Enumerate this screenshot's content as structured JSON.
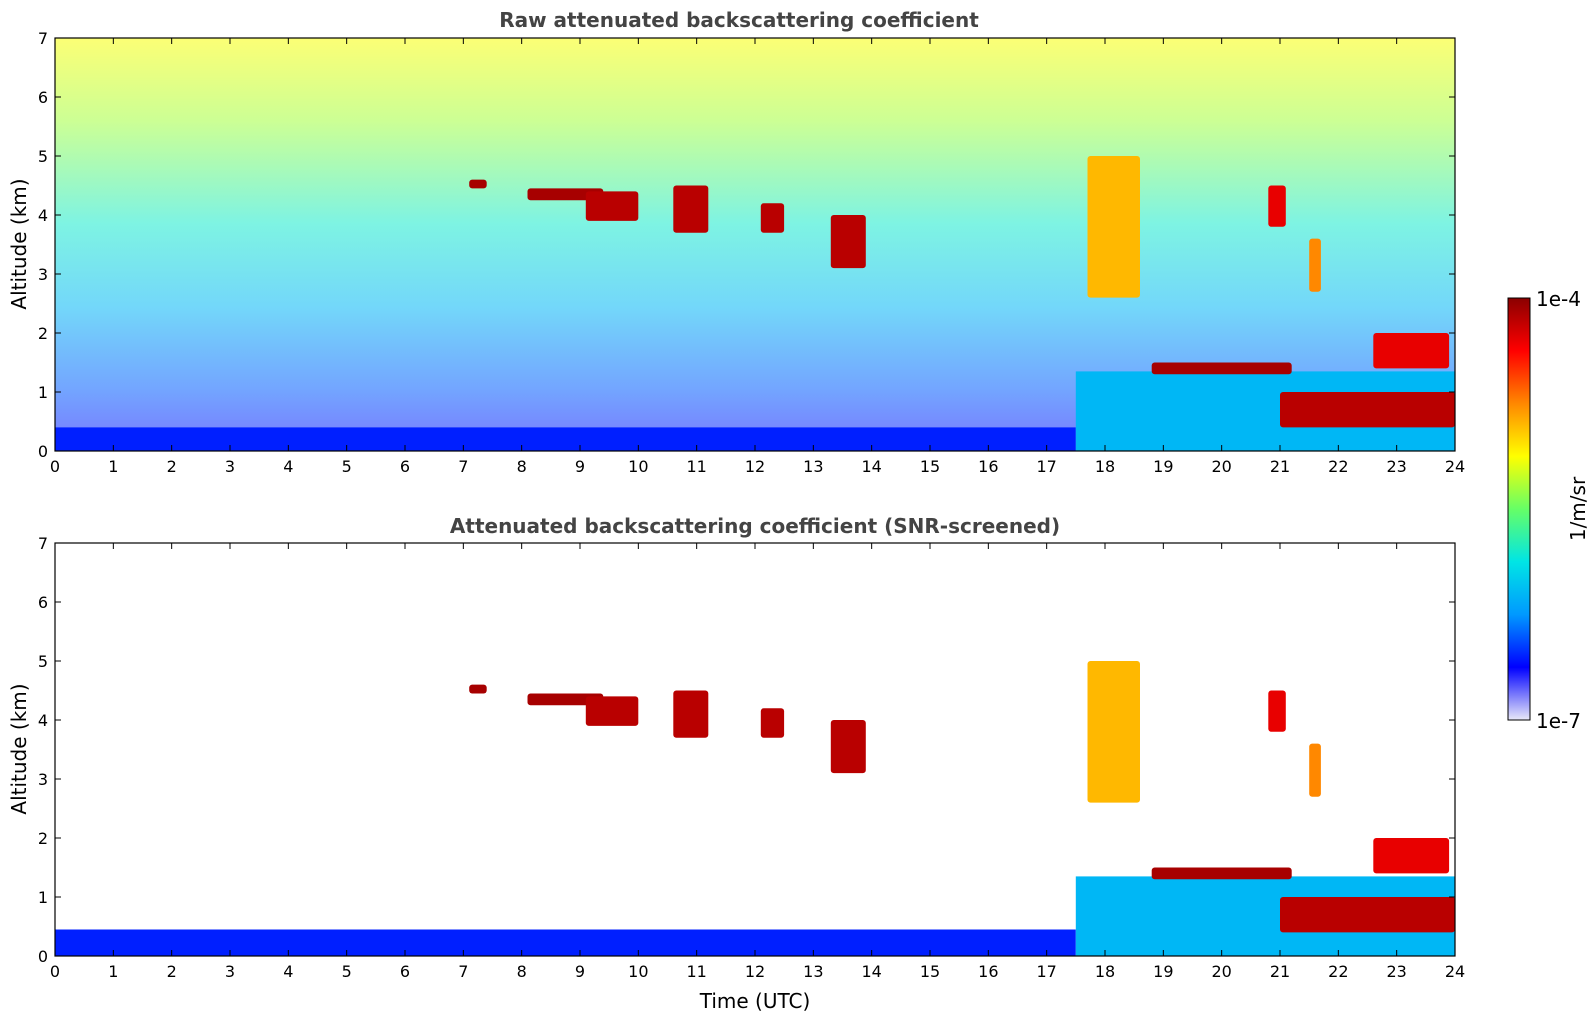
{
  "chart_data": [
    {
      "type": "heatmap",
      "title": "Raw attenuated backscattering coefficient",
      "xlabel": "",
      "ylabel": "Altitude (km)",
      "xlim": [
        0,
        24
      ],
      "ylim": [
        0,
        7
      ],
      "xticks": [
        "0",
        "1",
        "2",
        "3",
        "4",
        "5",
        "6",
        "7",
        "8",
        "9",
        "10",
        "11",
        "12",
        "13",
        "14",
        "15",
        "16",
        "17",
        "18",
        "19",
        "20",
        "21",
        "22",
        "23",
        "24"
      ],
      "yticks": [
        "0",
        "1",
        "2",
        "3",
        "4",
        "5",
        "6",
        "7"
      ],
      "screened": false,
      "features": [
        {
          "kind": "boundary_layer",
          "x": [
            0,
            17.5
          ],
          "y": [
            0,
            0.4
          ],
          "level": 0.15
        },
        {
          "kind": "boundary_layer",
          "x": [
            17.5,
            24
          ],
          "y": [
            0,
            1.35
          ],
          "level": 0.3
        },
        {
          "kind": "cloud",
          "x": [
            7.1,
            7.4
          ],
          "y": [
            4.45,
            4.6
          ],
          "level": 0.97
        },
        {
          "kind": "cloud",
          "x": [
            8.1,
            9.4
          ],
          "y": [
            4.25,
            4.45
          ],
          "level": 0.97
        },
        {
          "kind": "cloud",
          "x": [
            9.1,
            10.0
          ],
          "y": [
            3.9,
            4.4
          ],
          "level": 0.95
        },
        {
          "kind": "cloud",
          "x": [
            10.6,
            11.2
          ],
          "y": [
            3.7,
            4.5
          ],
          "level": 0.95
        },
        {
          "kind": "cloud",
          "x": [
            12.1,
            12.5
          ],
          "y": [
            3.7,
            4.2
          ],
          "level": 0.95
        },
        {
          "kind": "cloud",
          "x": [
            13.3,
            13.9
          ],
          "y": [
            3.1,
            4.0
          ],
          "level": 0.95
        },
        {
          "kind": "cloud",
          "x": [
            17.7,
            18.6
          ],
          "y": [
            2.6,
            5.0
          ],
          "level": 0.7
        },
        {
          "kind": "cloud",
          "x": [
            18.8,
            21.2
          ],
          "y": [
            1.3,
            1.5
          ],
          "level": 0.97
        },
        {
          "kind": "cloud",
          "x": [
            21.0,
            24.0
          ],
          "y": [
            0.4,
            1.0
          ],
          "level": 0.95
        },
        {
          "kind": "cloud",
          "x": [
            22.6,
            23.9
          ],
          "y": [
            1.4,
            2.0
          ],
          "level": 0.9
        },
        {
          "kind": "cloud",
          "x": [
            20.8,
            21.1
          ],
          "y": [
            3.8,
            4.5
          ],
          "level": 0.9
        },
        {
          "kind": "cloud",
          "x": [
            21.5,
            21.7
          ],
          "y": [
            2.7,
            3.6
          ],
          "level": 0.75
        }
      ]
    },
    {
      "type": "heatmap",
      "title": "Attenuated backscattering coefficient (SNR-screened)",
      "xlabel": "Time (UTC)",
      "ylabel": "Altitude (km)",
      "xlim": [
        0,
        24
      ],
      "ylim": [
        0,
        7
      ],
      "xticks": [
        "0",
        "1",
        "2",
        "3",
        "4",
        "5",
        "6",
        "7",
        "8",
        "9",
        "10",
        "11",
        "12",
        "13",
        "14",
        "15",
        "16",
        "17",
        "18",
        "19",
        "20",
        "21",
        "22",
        "23",
        "24"
      ],
      "yticks": [
        "0",
        "1",
        "2",
        "3",
        "4",
        "5",
        "6",
        "7"
      ],
      "screened": true,
      "features": [
        {
          "kind": "boundary_layer",
          "x": [
            0,
            17.5
          ],
          "y": [
            0,
            0.45
          ],
          "level": 0.15
        },
        {
          "kind": "boundary_layer",
          "x": [
            17.5,
            24
          ],
          "y": [
            0,
            1.35
          ],
          "level": 0.3
        },
        {
          "kind": "cloud",
          "x": [
            7.1,
            7.4
          ],
          "y": [
            4.45,
            4.6
          ],
          "level": 0.97
        },
        {
          "kind": "cloud",
          "x": [
            8.1,
            9.4
          ],
          "y": [
            4.25,
            4.45
          ],
          "level": 0.97
        },
        {
          "kind": "cloud",
          "x": [
            9.1,
            10.0
          ],
          "y": [
            3.9,
            4.4
          ],
          "level": 0.95
        },
        {
          "kind": "cloud",
          "x": [
            10.6,
            11.2
          ],
          "y": [
            3.7,
            4.5
          ],
          "level": 0.95
        },
        {
          "kind": "cloud",
          "x": [
            12.1,
            12.5
          ],
          "y": [
            3.7,
            4.2
          ],
          "level": 0.95
        },
        {
          "kind": "cloud",
          "x": [
            13.3,
            13.9
          ],
          "y": [
            3.1,
            4.0
          ],
          "level": 0.95
        },
        {
          "kind": "cloud",
          "x": [
            17.7,
            18.6
          ],
          "y": [
            2.6,
            5.0
          ],
          "level": 0.7
        },
        {
          "kind": "cloud",
          "x": [
            18.8,
            21.2
          ],
          "y": [
            1.3,
            1.5
          ],
          "level": 0.97
        },
        {
          "kind": "cloud",
          "x": [
            21.0,
            24.0
          ],
          "y": [
            0.4,
            1.0
          ],
          "level": 0.95
        },
        {
          "kind": "cloud",
          "x": [
            22.6,
            23.9
          ],
          "y": [
            1.4,
            2.0
          ],
          "level": 0.9
        },
        {
          "kind": "cloud",
          "x": [
            20.8,
            21.1
          ],
          "y": [
            3.8,
            4.5
          ],
          "level": 0.9
        },
        {
          "kind": "cloud",
          "x": [
            21.5,
            21.7
          ],
          "y": [
            2.7,
            3.6
          ],
          "level": 0.75
        }
      ]
    }
  ],
  "colorbar": {
    "label": "1/m/sr",
    "max_label": "1e-4",
    "min_label": "1e-7",
    "colormap": [
      "#e8e8f8",
      "#0000ff",
      "#0099ff",
      "#00e5e5",
      "#66ff66",
      "#ffff00",
      "#ff8800",
      "#ff0000",
      "#8b0000"
    ]
  }
}
